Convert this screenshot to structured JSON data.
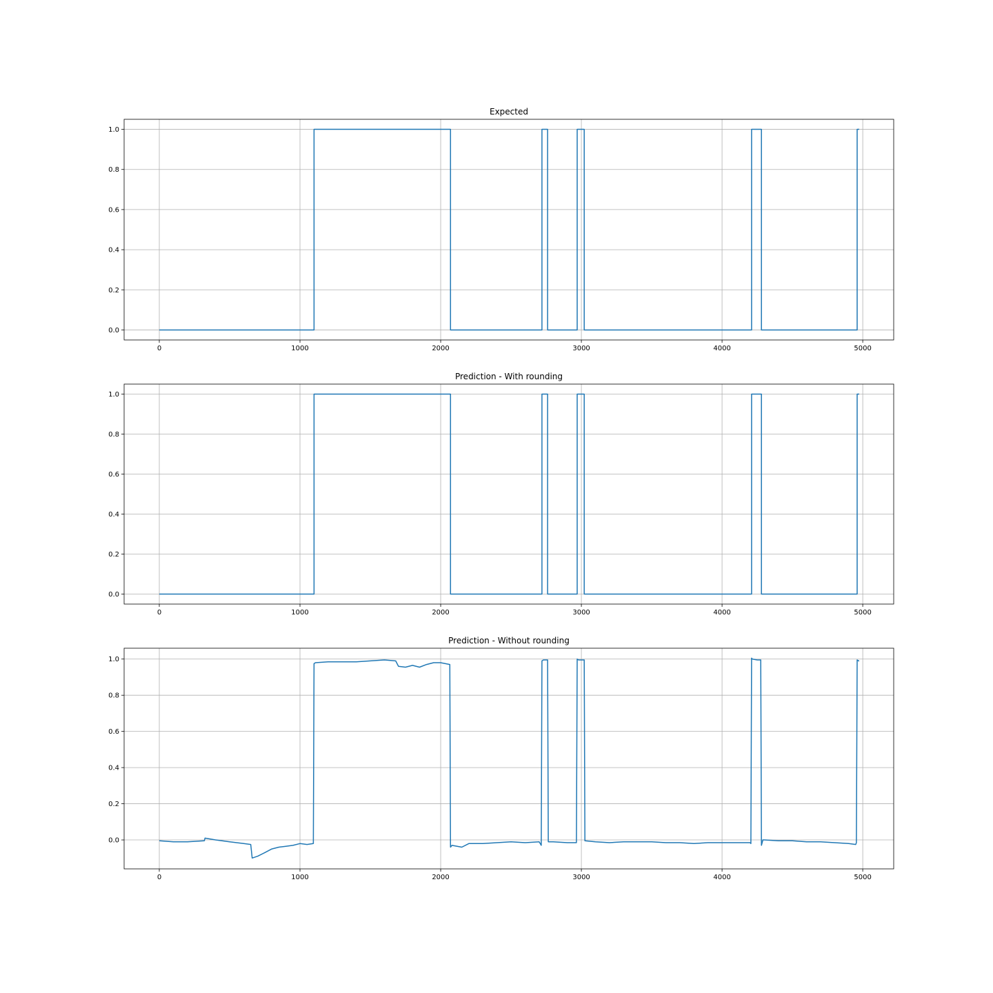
{
  "chart_data": [
    {
      "type": "line",
      "title": "Expected",
      "xlabel": "",
      "ylabel": "",
      "xlim": [
        -250,
        5220
      ],
      "ylim": [
        -0.05,
        1.05
      ],
      "xticks": [
        0,
        1000,
        2000,
        3000,
        4000,
        5000
      ],
      "yticks": [
        0.0,
        0.2,
        0.4,
        0.6,
        0.8,
        1.0
      ],
      "xtick_labels": [
        "0",
        "1000",
        "2000",
        "3000",
        "4000",
        "5000"
      ],
      "ytick_labels": [
        "0.0",
        "0.2",
        "0.4",
        "0.6",
        "0.8",
        "1.0"
      ],
      "grid": true,
      "color": "#1f77b4",
      "series": [
        {
          "x": [
            0,
            1100,
            1100,
            2070,
            2070,
            2720,
            2720,
            2760,
            2760,
            2970,
            2970,
            3020,
            3020,
            4210,
            4210,
            4280,
            4280,
            4960,
            4960,
            4975
          ],
          "y": [
            0,
            0,
            1,
            1,
            0,
            0,
            1,
            1,
            0,
            0,
            1,
            1,
            0,
            0,
            1,
            1,
            0,
            0,
            1,
            1
          ]
        }
      ]
    },
    {
      "type": "line",
      "title": "Prediction - With rounding",
      "xlabel": "",
      "ylabel": "",
      "xlim": [
        -250,
        5220
      ],
      "ylim": [
        -0.05,
        1.05
      ],
      "xticks": [
        0,
        1000,
        2000,
        3000,
        4000,
        5000
      ],
      "yticks": [
        0.0,
        0.2,
        0.4,
        0.6,
        0.8,
        1.0
      ],
      "xtick_labels": [
        "0",
        "1000",
        "2000",
        "3000",
        "4000",
        "5000"
      ],
      "ytick_labels": [
        "0.0",
        "0.2",
        "0.4",
        "0.6",
        "0.8",
        "1.0"
      ],
      "grid": true,
      "color": "#1f77b4",
      "series": [
        {
          "x": [
            0,
            1100,
            1100,
            2070,
            2070,
            2720,
            2720,
            2760,
            2760,
            2970,
            2970,
            3020,
            3020,
            4210,
            4210,
            4280,
            4280,
            4960,
            4960,
            4975
          ],
          "y": [
            0,
            0,
            1,
            1,
            0,
            0,
            1,
            1,
            0,
            0,
            1,
            1,
            0,
            0,
            1,
            1,
            0,
            0,
            1,
            1
          ]
        }
      ]
    },
    {
      "type": "line",
      "title": "Prediction - Without rounding",
      "xlabel": "",
      "ylabel": "",
      "xlim": [
        -250,
        5220
      ],
      "ylim": [
        -0.16,
        1.06
      ],
      "xticks": [
        0,
        1000,
        2000,
        3000,
        4000,
        5000
      ],
      "yticks": [
        0.0,
        0.2,
        0.4,
        0.6,
        0.8,
        1.0
      ],
      "xtick_labels": [
        "0",
        "1000",
        "2000",
        "3000",
        "4000",
        "5000"
      ],
      "ytick_labels": [
        "0.0",
        "0.2",
        "0.4",
        "0.6",
        "0.8",
        "1.0"
      ],
      "grid": true,
      "color": "#1f77b4",
      "series": [
        {
          "x": [
            0,
            100,
            200,
            320,
            325,
            400,
            500,
            600,
            650,
            660,
            700,
            750,
            800,
            850,
            900,
            950,
            1000,
            1050,
            1095,
            1100,
            1110,
            1200,
            1300,
            1400,
            1500,
            1600,
            1680,
            1700,
            1750,
            1800,
            1850,
            1900,
            1950,
            2000,
            2065,
            2070,
            2080,
            2150,
            2200,
            2300,
            2400,
            2500,
            2600,
            2700,
            2715,
            2720,
            2730,
            2760,
            2765,
            2800,
            2900,
            2965,
            2970,
            2980,
            3000,
            3020,
            3025,
            3100,
            3200,
            3300,
            3400,
            3500,
            3600,
            3700,
            3800,
            3900,
            4000,
            4100,
            4200,
            4205,
            4210,
            4215,
            4250,
            4275,
            4280,
            4290,
            4300,
            4400,
            4500,
            4600,
            4700,
            4800,
            4900,
            4950,
            4955,
            4960,
            4970,
            4975
          ],
          "y": [
            -0.005,
            -0.01,
            -0.01,
            -0.005,
            0.01,
            0.0,
            -0.01,
            -0.02,
            -0.025,
            -0.1,
            -0.09,
            -0.07,
            -0.05,
            -0.04,
            -0.035,
            -0.03,
            -0.02,
            -0.025,
            -0.02,
            0.975,
            0.98,
            0.985,
            0.985,
            0.985,
            0.99,
            0.995,
            0.99,
            0.96,
            0.955,
            0.965,
            0.955,
            0.97,
            0.98,
            0.98,
            0.97,
            -0.04,
            -0.03,
            -0.04,
            -0.02,
            -0.02,
            -0.015,
            -0.01,
            -0.015,
            -0.01,
            -0.03,
            0.99,
            0.995,
            0.995,
            -0.01,
            -0.01,
            -0.015,
            -0.015,
            1.0,
            0.995,
            0.995,
            0.995,
            -0.005,
            -0.01,
            -0.015,
            -0.01,
            -0.01,
            -0.01,
            -0.015,
            -0.015,
            -0.02,
            -0.015,
            -0.015,
            -0.015,
            -0.015,
            -0.02,
            1.005,
            1.0,
            0.995,
            0.995,
            -0.03,
            0.0,
            0.0,
            -0.005,
            -0.005,
            -0.01,
            -0.01,
            -0.015,
            -0.02,
            -0.025,
            -0.015,
            0.995,
            0.99,
            0.99
          ]
        }
      ]
    }
  ]
}
